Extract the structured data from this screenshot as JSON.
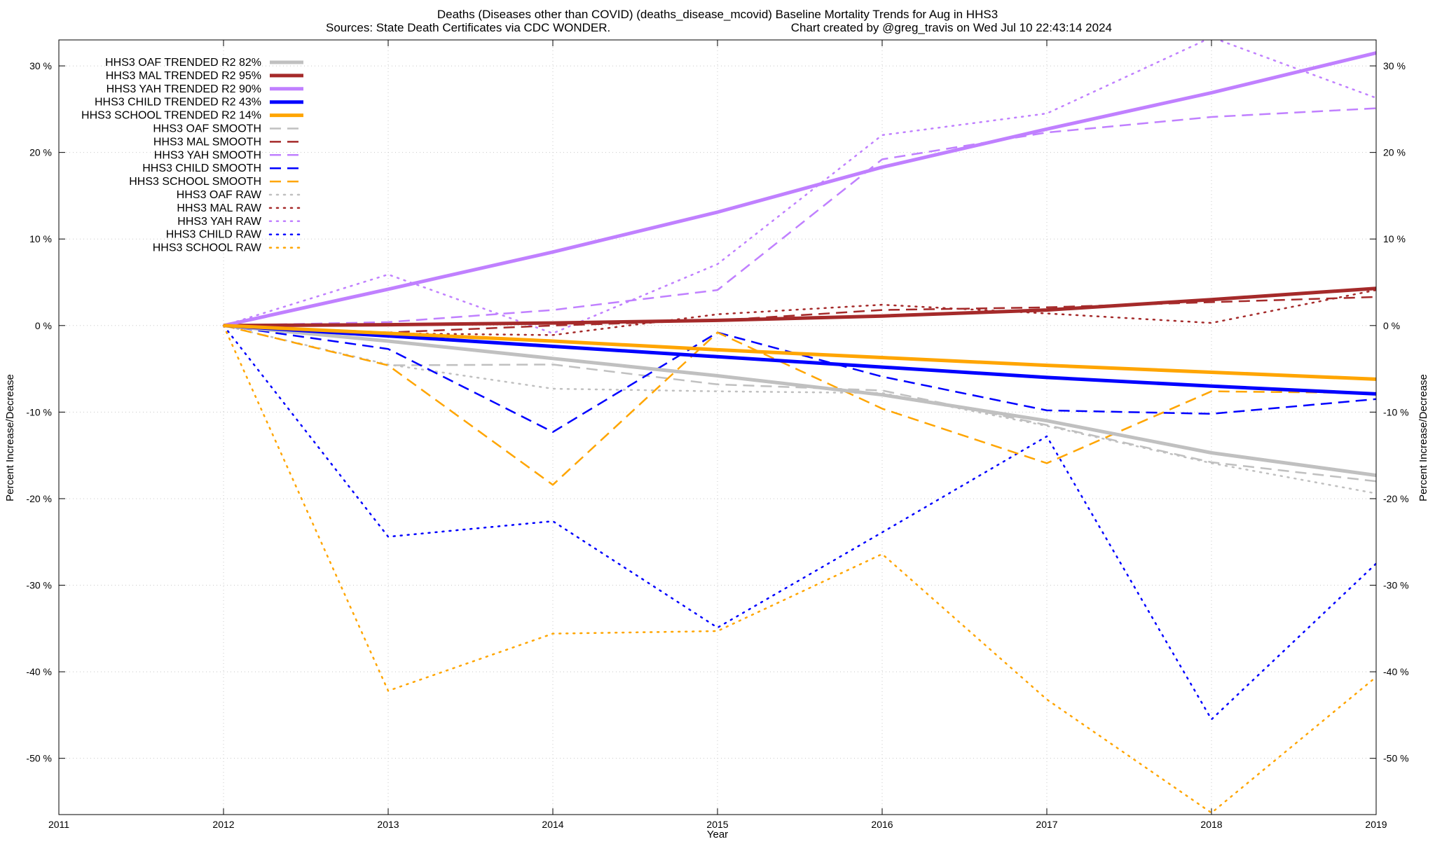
{
  "chart_data": {
    "type": "line",
    "title_line1": "Deaths (Diseases other than COVID) (deaths_disease_mcovid)  Baseline Mortality Trends for Aug in HHS3",
    "title_line2_left": "Sources: State Death Certificates via CDC WONDER.",
    "title_line2_right": "Chart created by @greg_travis on Wed Jul 10 22:43:14 2024",
    "xlabel": "Year",
    "ylabel": "Percent Increase/Decrease",
    "xlim": [
      2011,
      2019
    ],
    "ylim": [
      -56.5,
      33
    ],
    "x_ticks": [
      2011,
      2012,
      2013,
      2014,
      2015,
      2016,
      2017,
      2018,
      2019
    ],
    "y_ticks": [
      30,
      20,
      10,
      0,
      -10,
      -20,
      -30,
      -40,
      -50
    ],
    "y_tick_labels": [
      "30 %",
      "20 %",
      "10 %",
      "0 %",
      "-10 %",
      "-20 %",
      "-30 %",
      "-40 %",
      "-50 %"
    ],
    "grid": true,
    "legend_position": "top-left",
    "colors": {
      "oaf": "#c0c0c0",
      "mal": "#a52a2a",
      "yah": "#c080ff",
      "child": "#0000ff",
      "school": "#ffa500"
    },
    "series": [
      {
        "name": "HHS3 OAF TRENDED R2  82%",
        "group": "oaf",
        "style": "solid",
        "x": [
          2012,
          2013,
          2014,
          2015,
          2016,
          2017,
          2018,
          2019
        ],
        "values": [
          0,
          -1.8,
          -3.8,
          -5.8,
          -8.0,
          -11.0,
          -14.7,
          -17.3
        ]
      },
      {
        "name": "HHS3 MAL TRENDED R2  95%",
        "group": "mal",
        "style": "solid",
        "x": [
          2012,
          2013,
          2014,
          2015,
          2016,
          2017,
          2018,
          2019
        ],
        "values": [
          0,
          0.1,
          0.3,
          0.6,
          1.1,
          1.8,
          3.0,
          4.3
        ]
      },
      {
        "name": "HHS3 YAH TRENDED R2  90%",
        "group": "yah",
        "style": "solid",
        "x": [
          2012,
          2013,
          2014,
          2015,
          2016,
          2017,
          2018,
          2019
        ],
        "values": [
          0,
          4.2,
          8.5,
          13.1,
          18.3,
          22.7,
          26.9,
          31.5
        ]
      },
      {
        "name": "HHS3 CHILD TRENDED R2  43%",
        "group": "child",
        "style": "solid",
        "x": [
          2012,
          2013,
          2014,
          2015,
          2016,
          2017,
          2018,
          2019
        ],
        "values": [
          0,
          -1.2,
          -2.4,
          -3.6,
          -4.8,
          -6.0,
          -7.0,
          -7.9
        ]
      },
      {
        "name": "HHS3 SCHOOL TRENDED R2  14%",
        "group": "school",
        "style": "solid",
        "x": [
          2012,
          2013,
          2014,
          2015,
          2016,
          2017,
          2018,
          2019
        ],
        "values": [
          0,
          -0.9,
          -1.8,
          -2.8,
          -3.7,
          -4.6,
          -5.4,
          -6.2
        ]
      },
      {
        "name": "HHS3 OAF SMOOTH",
        "group": "oaf",
        "style": "dash",
        "x": [
          2012,
          2013,
          2014,
          2015,
          2016,
          2017,
          2018,
          2019
        ],
        "values": [
          0,
          -4.6,
          -4.5,
          -6.8,
          -7.5,
          -11.5,
          -15.8,
          -18.0
        ]
      },
      {
        "name": "HHS3 MAL SMOOTH",
        "group": "mal",
        "style": "dash",
        "x": [
          2012,
          2013,
          2014,
          2015,
          2016,
          2017,
          2018,
          2019
        ],
        "values": [
          0,
          -0.8,
          0.0,
          0.6,
          1.8,
          2.1,
          2.7,
          3.3
        ]
      },
      {
        "name": "HHS3 YAH SMOOTH",
        "group": "yah",
        "style": "dash",
        "x": [
          2012,
          2013,
          2014,
          2015,
          2016,
          2017,
          2018,
          2019
        ],
        "values": [
          0,
          0.4,
          1.8,
          4.1,
          19.2,
          22.3,
          24.1,
          25.1
        ]
      },
      {
        "name": "HHS3 CHILD SMOOTH",
        "group": "child",
        "style": "dash",
        "x": [
          2012,
          2013,
          2014,
          2015,
          2016,
          2017,
          2018,
          2019
        ],
        "values": [
          0,
          -2.7,
          -12.3,
          -0.8,
          -5.9,
          -9.8,
          -10.2,
          -8.5
        ]
      },
      {
        "name": "HHS3 SCHOOL SMOOTH",
        "group": "school",
        "style": "dash",
        "x": [
          2012,
          2013,
          2014,
          2015,
          2016,
          2017,
          2018,
          2019
        ],
        "values": [
          0,
          -4.6,
          -18.4,
          -0.8,
          -9.6,
          -15.9,
          -7.6,
          -7.8
        ]
      },
      {
        "name": "HHS3 OAF RAW",
        "group": "oaf",
        "style": "dot",
        "x": [
          2012,
          2013,
          2014,
          2015,
          2016,
          2017,
          2018,
          2019
        ],
        "values": [
          0,
          -4.5,
          -7.3,
          -7.6,
          -7.8,
          -11.6,
          -15.9,
          -19.4
        ]
      },
      {
        "name": "HHS3 MAL RAW",
        "group": "mal",
        "style": "dot",
        "x": [
          2012,
          2013,
          2014,
          2015,
          2016,
          2017,
          2018,
          2019
        ],
        "values": [
          0,
          -0.9,
          -1.1,
          1.3,
          2.4,
          1.4,
          0.3,
          4.1
        ]
      },
      {
        "name": "HHS3 YAH RAW",
        "group": "yah",
        "style": "dot",
        "x": [
          2012,
          2013,
          2014,
          2015,
          2016,
          2017,
          2018,
          2019
        ],
        "values": [
          0,
          5.9,
          -0.9,
          7.1,
          22.0,
          24.5,
          33.3,
          26.3
        ]
      },
      {
        "name": "HHS3 CHILD RAW",
        "group": "child",
        "style": "dot",
        "x": [
          2012,
          2013,
          2014,
          2015,
          2016,
          2017,
          2018,
          2019
        ],
        "values": [
          0,
          -24.4,
          -22.6,
          -34.9,
          -23.9,
          -12.8,
          -45.5,
          -27.5
        ]
      },
      {
        "name": "HHS3 SCHOOL RAW",
        "group": "school",
        "style": "dot",
        "x": [
          2012,
          2013,
          2014,
          2015,
          2016,
          2017,
          2018,
          2019
        ],
        "values": [
          0,
          -42.2,
          -35.6,
          -35.3,
          -26.4,
          -43.2,
          -56.3,
          -40.6
        ]
      }
    ]
  }
}
